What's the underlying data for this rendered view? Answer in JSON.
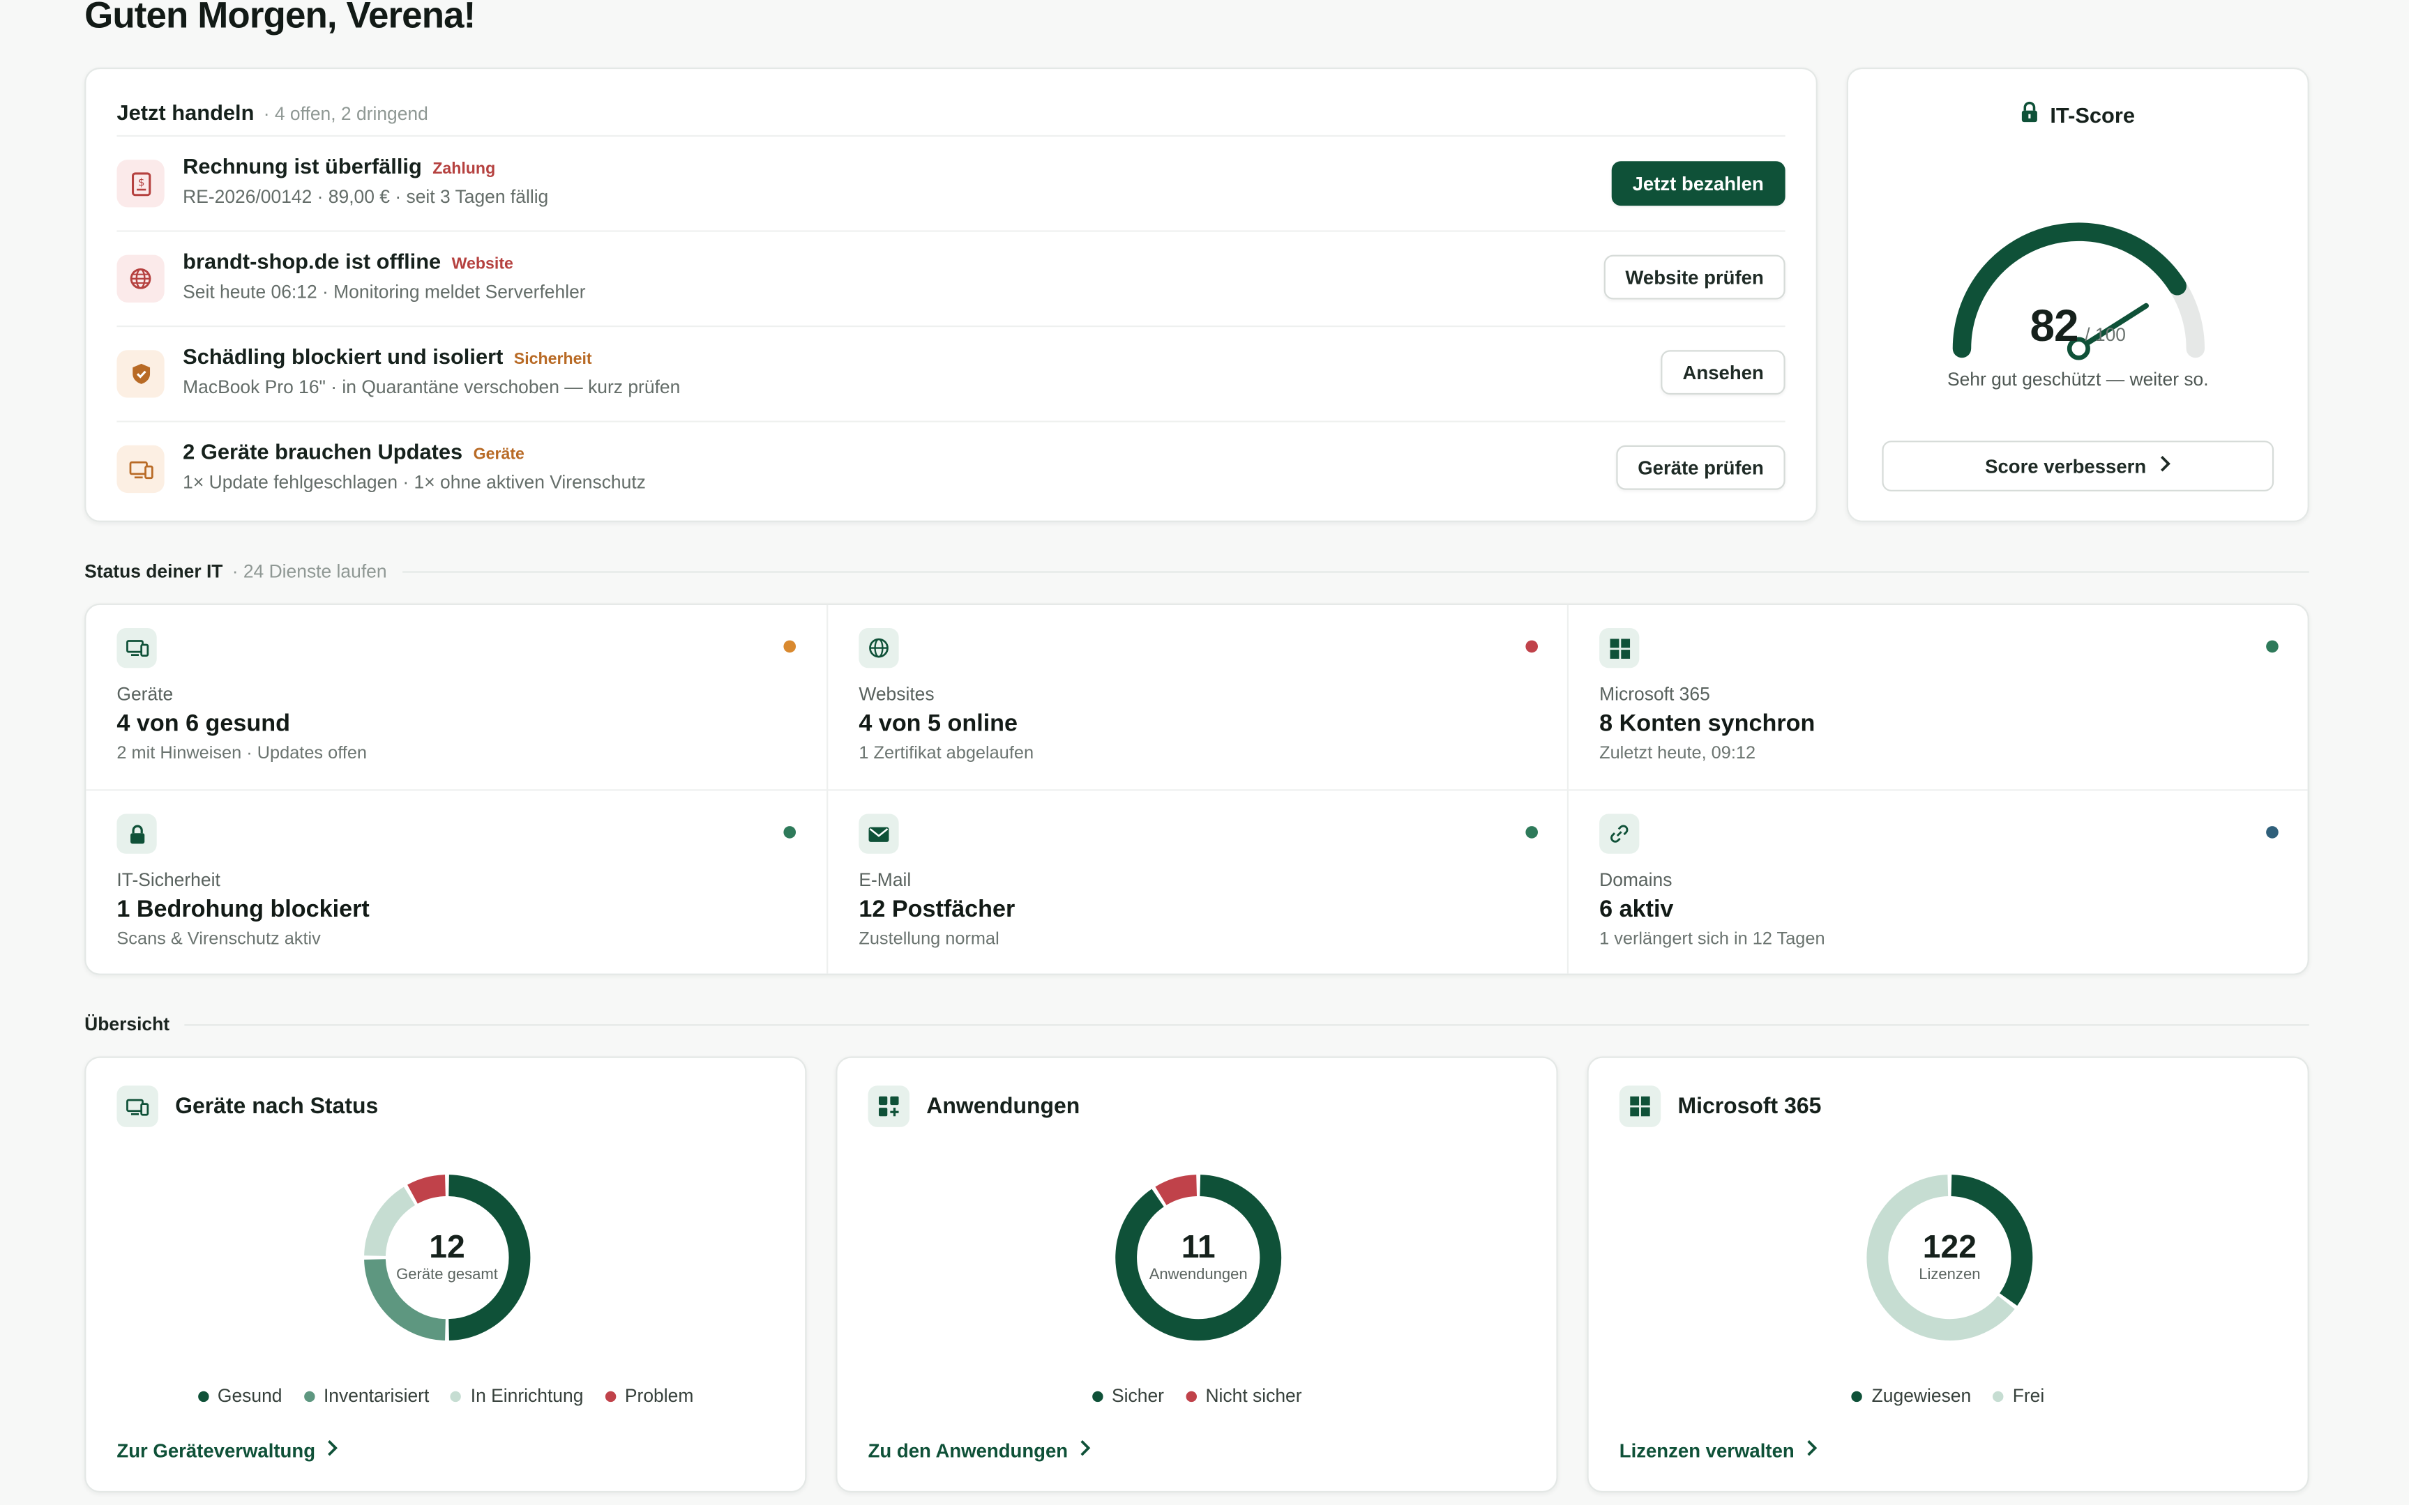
{
  "greeting": "Guten Morgen, Verena!",
  "actions": {
    "title": "Jetzt handeln",
    "meta": "· 4 offen, 2 dringend",
    "items": [
      {
        "title": "Rechnung ist überfällig",
        "tag": "Zahlung",
        "tag_color": "#b5413f",
        "sub": "RE-2026/00142 · 89,00 € · seit 3 Tagen fällig",
        "button": "Jetzt bezahlen",
        "icon": "invoice-icon",
        "icon_bg": "#fbeaea",
        "icon_color": "#b5413f"
      },
      {
        "title": "brandt-shop.de ist offline",
        "tag": "Website",
        "tag_color": "#b5413f",
        "sub": "Seit heute 06:12 · Monitoring meldet Serverfehler",
        "button": "Website prüfen",
        "icon": "globe-icon",
        "icon_bg": "#fbeaea",
        "icon_color": "#b5413f"
      },
      {
        "title": "Schädling blockiert und isoliert",
        "tag": "Sicherheit",
        "tag_color": "#b86a25",
        "sub": "MacBook Pro 16\" · in Quarantäne verschoben — kurz prüfen",
        "button": "Ansehen",
        "icon": "shield-icon",
        "icon_bg": "#fcefe3",
        "icon_color": "#b86a25"
      },
      {
        "title": "2 Geräte brauchen Updates",
        "tag": "Geräte",
        "tag_color": "#b86a25",
        "sub": "1× Update fehlgeschlagen · 1× ohne aktiven Virenschutz",
        "button": "Geräte prüfen",
        "icon": "devices-icon",
        "icon_bg": "#fcefe3",
        "icon_color": "#b86a25"
      }
    ]
  },
  "score": {
    "title": "IT-Score",
    "value": 82,
    "value_text": "82",
    "of": "/ 100",
    "text": "Sehr gut geschützt — weiter so.",
    "button": "Score verbessern"
  },
  "status": {
    "title": "Status deiner IT",
    "meta": "· 24 Dienste laufen",
    "tiles": [
      {
        "label": "Geräte",
        "value": "4 von 6 gesund",
        "sub": "2 mit Hinweisen · Updates offen",
        "dot": "#d9892f",
        "icon": "devices-icon"
      },
      {
        "label": "Websites",
        "value": "4 von 5 online",
        "sub": "1 Zertifikat abgelaufen",
        "dot": "#c0424a",
        "icon": "globe-icon"
      },
      {
        "label": "Microsoft 365",
        "value": "8 Konten synchron",
        "sub": "Zuletzt heute, 09:12",
        "dot": "#2e7a5a",
        "icon": "windows-icon"
      },
      {
        "label": "IT-Sicherheit",
        "value": "1 Bedrohung blockiert",
        "sub": "Scans & Virenschutz aktiv",
        "dot": "#2e7a5a",
        "icon": "lock-icon"
      },
      {
        "label": "E-Mail",
        "value": "12 Postfächer",
        "sub": "Zustellung normal",
        "dot": "#2e7a5a",
        "icon": "mail-icon"
      },
      {
        "label": "Domains",
        "value": "6 aktiv",
        "sub": "1 verlängert sich in 12 Tagen",
        "dot": "#2f5f7a",
        "icon": "link-icon"
      }
    ]
  },
  "overview": {
    "title": "Übersicht",
    "cards": [
      {
        "title": "Geräte nach Status",
        "icon": "devices-icon",
        "total": "12",
        "total_label": "Geräte gesamt",
        "link": "Zur Geräteverwaltung",
        "segments": [
          {
            "name": "Gesund",
            "value": 6,
            "color": "#0f5138"
          },
          {
            "name": "Inventarisiert",
            "value": 3,
            "color": "#5e9780"
          },
          {
            "name": "In Einrichtung",
            "value": 2,
            "color": "#c6ddd2"
          },
          {
            "name": "Problem",
            "value": 1,
            "color": "#c0424a"
          }
        ]
      },
      {
        "title": "Anwendungen",
        "icon": "apps-icon",
        "total": "11",
        "total_label": "Anwendungen",
        "link": "Zu den Anwendungen",
        "segments": [
          {
            "name": "Sicher",
            "value": 10,
            "color": "#0f5138"
          },
          {
            "name": "Nicht sicher",
            "value": 1,
            "color": "#c0424a"
          }
        ]
      },
      {
        "title": "Microsoft 365",
        "icon": "windows-icon",
        "total": "122",
        "total_label": "Lizenzen",
        "link": "Lizenzen verwalten",
        "segments": [
          {
            "name": "Zugewiesen",
            "value": 43,
            "color": "#0f5138"
          },
          {
            "name": "Frei",
            "value": 79,
            "color": "#c6ddd2"
          }
        ]
      }
    ]
  }
}
